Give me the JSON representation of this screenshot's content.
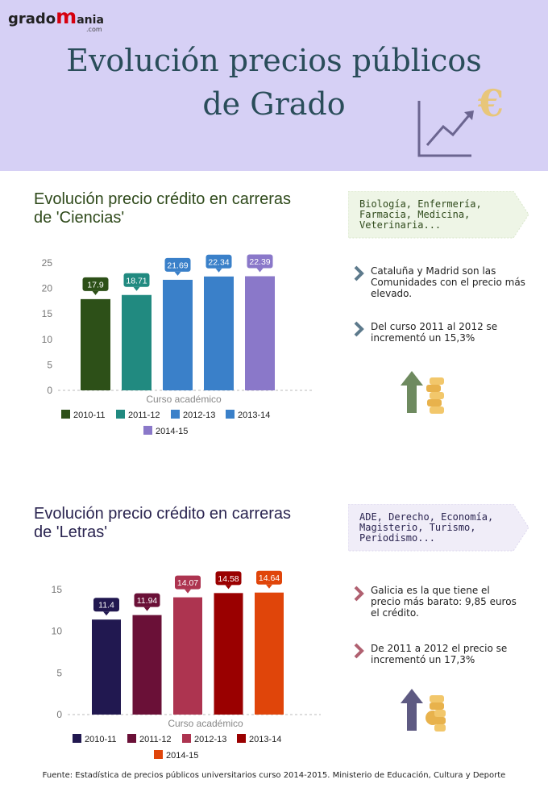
{
  "header": {
    "logo": {
      "part1": "grado",
      "part2": "m",
      "part3": "ania",
      "suffix": ".com"
    },
    "title_line1": "Evolución precios públicos",
    "title_line2": "de Grado",
    "accent_color": "#d6d0f5",
    "decoration_icons": [
      "line-chart-icon",
      "euro-icon"
    ]
  },
  "sections": [
    {
      "title_line1": "Evolución precio crédito en carreras",
      "title_line2": "de 'Ciencias'",
      "title_color": "#2f4a1b",
      "tag_lines": [
        "Biología, Enfermería,",
        "Farmacia, Medicina,",
        "Veterinaria..."
      ],
      "tag_bg": "#eef5e6",
      "tag_text_color": "#2f4a1b",
      "bullets": [
        {
          "lines": [
            "Cataluña y Madrid son las",
            "Comunidades con el precio más",
            "elevado."
          ]
        },
        {
          "lines": [
            "Del curso 2011 al 2012 se",
            "incrementó un 15,3%"
          ]
        }
      ],
      "bullet_color": "#5d7a8c",
      "icons": [
        "up-arrow-icon",
        "coins-icon"
      ]
    },
    {
      "title_line1": "Evolución precio crédito en carreras",
      "title_line2": "de 'Letras'",
      "title_color": "#2a2450",
      "tag_lines": [
        "ADE, Derecho, Economía,",
        "Magisterio, Turismo,",
        "Periodismo..."
      ],
      "tag_bg": "#f0edf8",
      "tag_text_color": "#2a2450",
      "bullets": [
        {
          "lines": [
            "Galicia es la que tiene el",
            "precio más barato: 9,85 euros",
            "el crédito."
          ]
        },
        {
          "lines": [
            "De 2011 a 2012 el precio se",
            "incrementó un 17,3%"
          ]
        }
      ],
      "bullet_color": "#b06070",
      "icons": [
        "up-arrow-icon",
        "coins-icon"
      ]
    }
  ],
  "chart_data": [
    {
      "type": "bar",
      "xlabel": "Curso académico",
      "categories": [
        "2010-11",
        "2011-12",
        "2012-13",
        "2013-14",
        "2014-15"
      ],
      "values": [
        17.9,
        18.71,
        21.69,
        22.34,
        22.39
      ],
      "colors": [
        "#2d5018",
        "#218a80",
        "#3a80c9",
        "#3a80c9",
        "#8a78c9"
      ],
      "ylim": [
        0,
        25
      ],
      "yticks": [
        0,
        5,
        10,
        15,
        20,
        25
      ],
      "legend": "bottom",
      "grid": false
    },
    {
      "type": "bar",
      "xlabel": "Curso académico",
      "categories": [
        "2010-11",
        "2011-12",
        "2012-13",
        "2013-14",
        "2014-15"
      ],
      "values": [
        11.4,
        11.94,
        14.07,
        14.58,
        14.64
      ],
      "colors": [
        "#211850",
        "#6a1037",
        "#ad3450",
        "#9a0000",
        "#e0450a"
      ],
      "ylim": [
        0,
        15
      ],
      "yticks": [
        0,
        5,
        10,
        15
      ],
      "legend": "bottom",
      "grid": false
    }
  ],
  "source": "Fuente: Estadística de precios públicos universitarios curso 2014-2015. Ministerio de Educación, Cultura y Deporte"
}
